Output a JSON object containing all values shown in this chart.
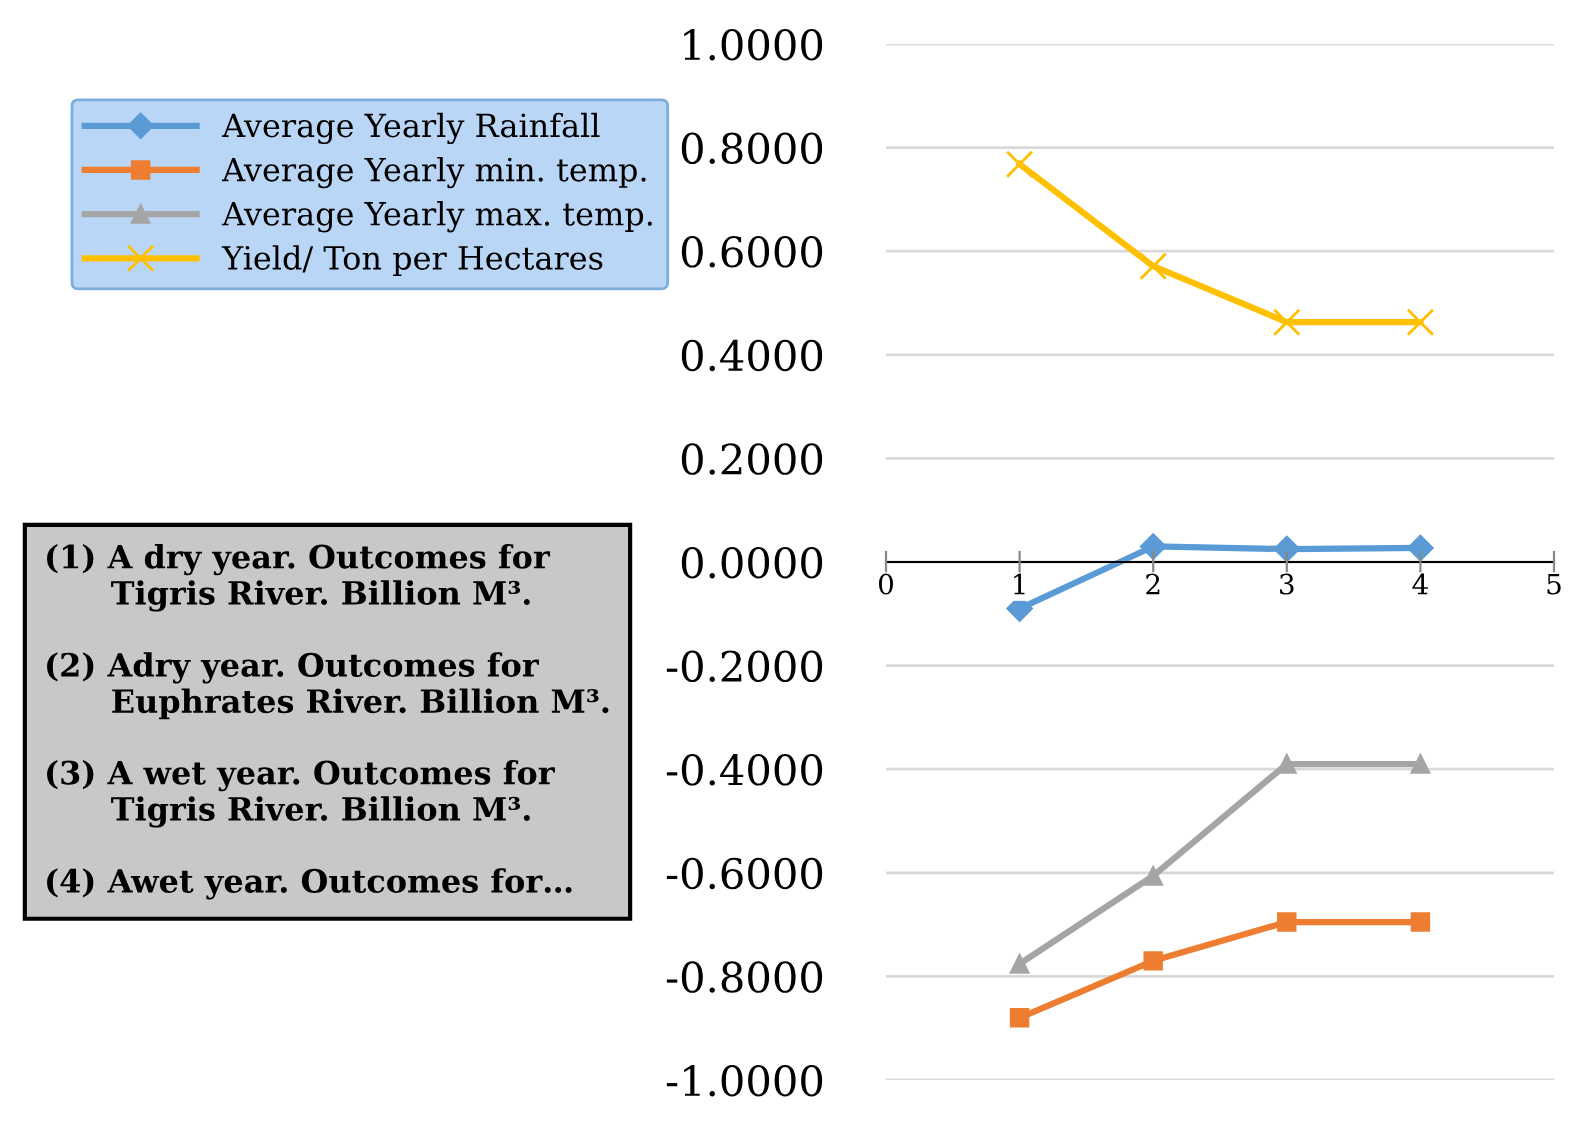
{
  "chart_data": {
    "type": "line",
    "x": [
      1,
      2,
      3,
      4
    ],
    "series": [
      {
        "name": "Average Yearly Rainfall",
        "color": "#5b9bd5",
        "marker": "diamond",
        "values": [
          -0.09,
          0.03,
          0.025,
          0.027
        ]
      },
      {
        "name": "Average Yearly min. temp.",
        "color": "#ed7d31",
        "marker": "square",
        "values": [
          -0.88,
          -0.77,
          -0.695,
          -0.695
        ]
      },
      {
        "name": "Average Yearly max. temp.",
        "color": "#a5a5a5",
        "marker": "triangle",
        "values": [
          -0.776,
          -0.606,
          -0.39,
          -0.39
        ]
      },
      {
        "name": "Yield/ Ton per Hectares",
        "color": "#ffc000",
        "marker": "cross",
        "values": [
          0.768,
          0.571,
          0.463,
          0.463
        ]
      }
    ],
    "xlim": [
      0,
      5
    ],
    "xticks": [
      0,
      1,
      2,
      3,
      4,
      5
    ],
    "ylim": [
      -1,
      1
    ],
    "yticks": [
      {
        "value": 1,
        "label": "1.0000"
      },
      {
        "value": 0.8,
        "label": "0.8000"
      },
      {
        "value": 0.6,
        "label": "0.6000"
      },
      {
        "value": 0.4,
        "label": "0.4000"
      },
      {
        "value": 0.2,
        "label": "0.2000"
      },
      {
        "value": 0,
        "label": "0.0000"
      },
      {
        "value": -0.2,
        "label": "-0.2000"
      },
      {
        "value": -0.4,
        "label": "-0.4000"
      },
      {
        "value": -0.6,
        "label": "-0.6000"
      },
      {
        "value": -0.8,
        "label": "-0.8000"
      },
      {
        "value": -1,
        "label": "-1.0000"
      }
    ],
    "grid": "y",
    "legend": "left",
    "line_style": "solid",
    "annotations": [
      "(1) A dry year. Outcomes for\n      Tigris River. Billion M³.\n\n(2) Adry year. Outcomes for\n      Euphrates River. Billion M³.\n\n(3) A wet year. Outcomes for\n      Tigris River. Billion M³.\n\n(4) Awet year. Outcomes for…"
    ]
  }
}
